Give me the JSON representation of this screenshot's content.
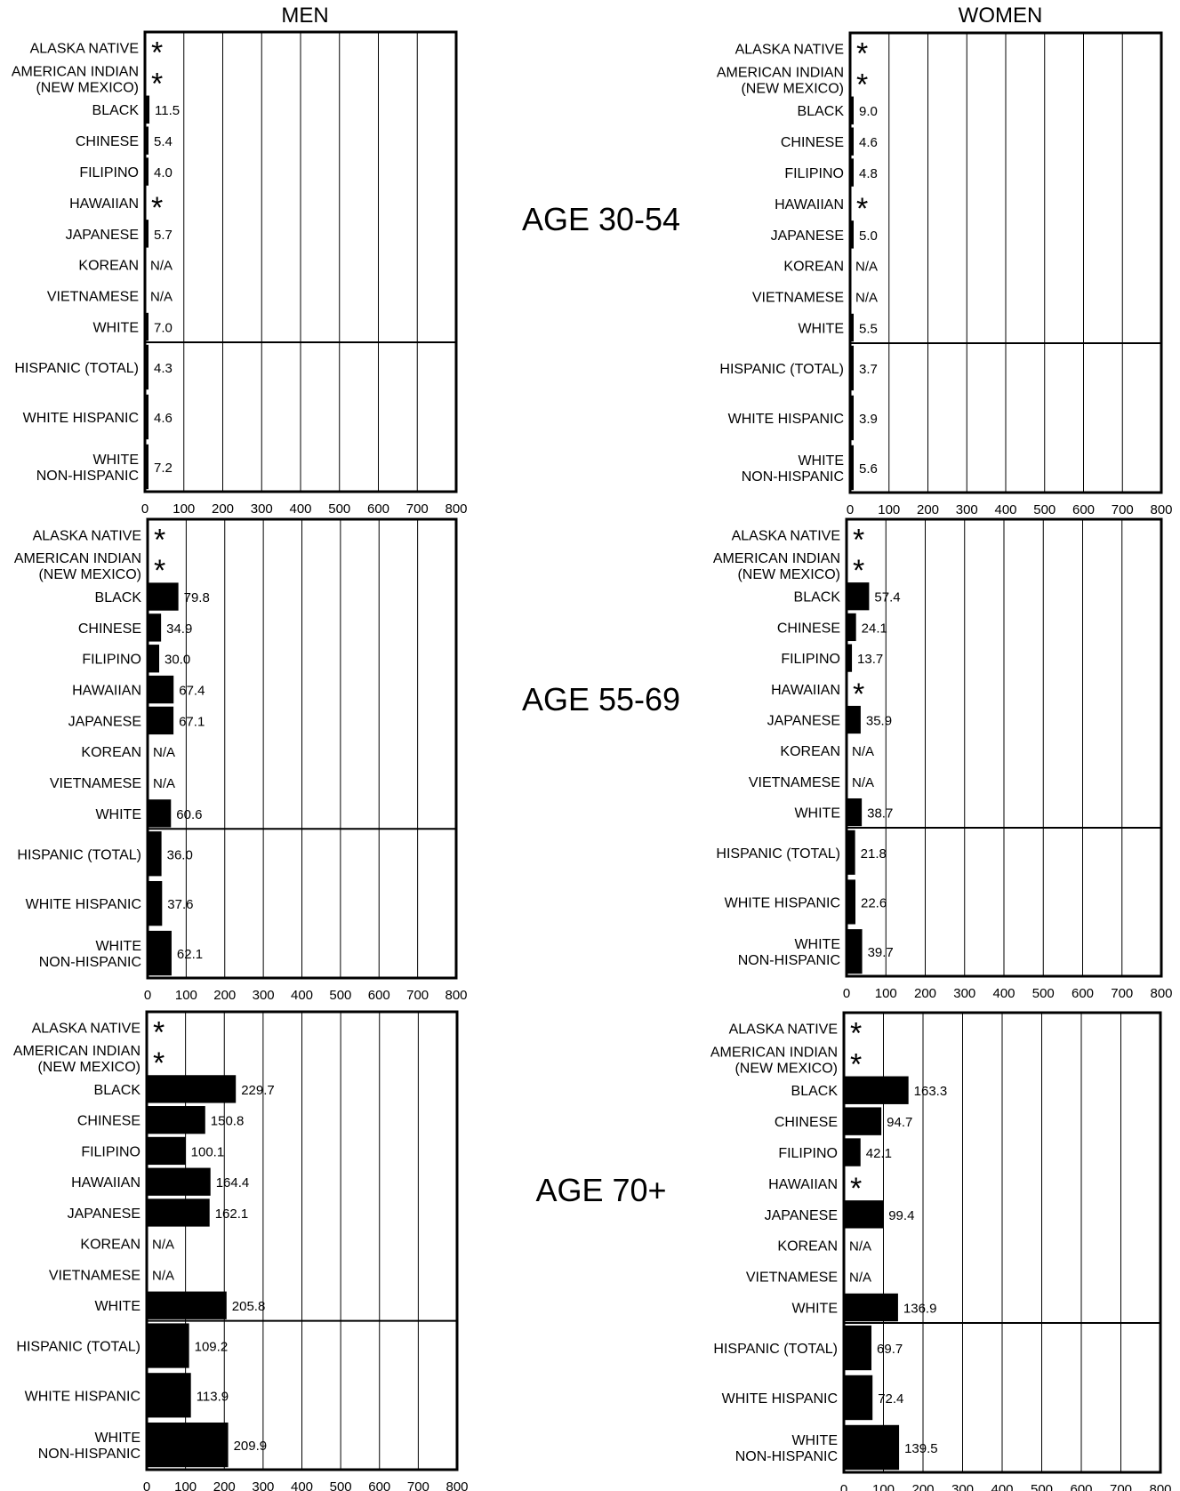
{
  "headers": {
    "men": "MEN",
    "women": "WOMEN"
  },
  "age_groups": [
    "AGE 30-54",
    "AGE 55-69",
    "AGE 70+"
  ],
  "chart_data": [
    {
      "type": "bar",
      "orientation": "horizontal",
      "sex": "MEN",
      "age_group": "AGE 30-54",
      "xlim": [
        0,
        800
      ],
      "xticks": [
        0,
        100,
        200,
        300,
        400,
        500,
        600,
        700,
        800
      ],
      "grid": true,
      "categories": [
        "ALASKA NATIVE",
        "AMERICAN INDIAN\n(NEW MEXICO)",
        "BLACK",
        "CHINESE",
        "FILIPINO",
        "HAWAIIAN",
        "JAPANESE",
        "KOREAN",
        "VIETNAMESE",
        "WHITE",
        "HISPANIC (TOTAL)",
        "WHITE HISPANIC",
        "WHITE\nNON-HISPANIC"
      ],
      "values": [
        null,
        null,
        11.5,
        5.4,
        4.0,
        null,
        5.7,
        null,
        null,
        7.0,
        4.3,
        4.6,
        7.2
      ],
      "value_labels": [
        "*",
        "*",
        "11.5",
        "5.4",
        "4.0",
        "*",
        "5.7",
        "N/A",
        "N/A",
        "7.0",
        "4.3",
        "4.6",
        "7.2"
      ]
    },
    {
      "type": "bar",
      "orientation": "horizontal",
      "sex": "WOMEN",
      "age_group": "AGE 30-54",
      "xlim": [
        0,
        800
      ],
      "xticks": [
        0,
        100,
        200,
        300,
        400,
        500,
        600,
        700,
        800
      ],
      "grid": true,
      "categories": [
        "ALASKA NATIVE",
        "AMERICAN INDIAN\n(NEW MEXICO)",
        "BLACK",
        "CHINESE",
        "FILIPINO",
        "HAWAIIAN",
        "JAPANESE",
        "KOREAN",
        "VIETNAMESE",
        "WHITE",
        "HISPANIC (TOTAL)",
        "WHITE HISPANIC",
        "WHITE\nNON-HISPANIC"
      ],
      "values": [
        null,
        null,
        9.0,
        4.6,
        4.8,
        null,
        5.0,
        null,
        null,
        5.5,
        3.7,
        3.9,
        5.6
      ],
      "value_labels": [
        "*",
        "*",
        "9.0",
        "4.6",
        "4.8",
        "*",
        "5.0",
        "N/A",
        "N/A",
        "5.5",
        "3.7",
        "3.9",
        "5.6"
      ]
    },
    {
      "type": "bar",
      "orientation": "horizontal",
      "sex": "MEN",
      "age_group": "AGE 55-69",
      "xlim": [
        0,
        800
      ],
      "xticks": [
        0,
        100,
        200,
        300,
        400,
        500,
        600,
        700,
        800
      ],
      "grid": true,
      "categories": [
        "ALASKA NATIVE",
        "AMERICAN INDIAN\n(NEW MEXICO)",
        "BLACK",
        "CHINESE",
        "FILIPINO",
        "HAWAIIAN",
        "JAPANESE",
        "KOREAN",
        "VIETNAMESE",
        "WHITE",
        "HISPANIC (TOTAL)",
        "WHITE HISPANIC",
        "WHITE\nNON-HISPANIC"
      ],
      "values": [
        null,
        null,
        79.8,
        34.9,
        30.0,
        67.4,
        67.1,
        null,
        null,
        60.6,
        36.0,
        37.6,
        62.1
      ],
      "value_labels": [
        "*",
        "*",
        "79.8",
        "34.9",
        "30.0",
        "67.4",
        "67.1",
        "N/A",
        "N/A",
        "60.6",
        "36.0",
        "37.6",
        "62.1"
      ]
    },
    {
      "type": "bar",
      "orientation": "horizontal",
      "sex": "WOMEN",
      "age_group": "AGE 55-69",
      "xlim": [
        0,
        800
      ],
      "xticks": [
        0,
        100,
        200,
        300,
        400,
        500,
        600,
        700,
        800
      ],
      "grid": true,
      "categories": [
        "ALASKA NATIVE",
        "AMERICAN INDIAN\n(NEW MEXICO)",
        "BLACK",
        "CHINESE",
        "FILIPINO",
        "HAWAIIAN",
        "JAPANESE",
        "KOREAN",
        "VIETNAMESE",
        "WHITE",
        "HISPANIC (TOTAL)",
        "WHITE HISPANIC",
        "WHITE\nNON-HISPANIC"
      ],
      "values": [
        null,
        null,
        57.4,
        24.1,
        13.7,
        null,
        35.9,
        null,
        null,
        38.7,
        21.8,
        22.6,
        39.7
      ],
      "value_labels": [
        "*",
        "*",
        "57.4",
        "24.1",
        "13.7",
        "*",
        "35.9",
        "N/A",
        "N/A",
        "38.7",
        "21.8",
        "22.6",
        "39.7"
      ]
    },
    {
      "type": "bar",
      "orientation": "horizontal",
      "sex": "MEN",
      "age_group": "AGE 70+",
      "xlim": [
        0,
        800
      ],
      "xticks": [
        0,
        100,
        200,
        300,
        400,
        500,
        600,
        700,
        800
      ],
      "grid": true,
      "categories": [
        "ALASKA NATIVE",
        "AMERICAN INDIAN\n(NEW MEXICO)",
        "BLACK",
        "CHINESE",
        "FILIPINO",
        "HAWAIIAN",
        "JAPANESE",
        "KOREAN",
        "VIETNAMESE",
        "WHITE",
        "HISPANIC (TOTAL)",
        "WHITE HISPANIC",
        "WHITE\nNON-HISPANIC"
      ],
      "values": [
        null,
        null,
        229.7,
        150.8,
        100.1,
        164.4,
        162.1,
        null,
        null,
        205.8,
        109.2,
        113.9,
        209.9
      ],
      "value_labels": [
        "*",
        "*",
        "229.7",
        "150.8",
        "100.1",
        "164.4",
        "162.1",
        "N/A",
        "N/A",
        "205.8",
        "109.2",
        "113.9",
        "209.9"
      ]
    },
    {
      "type": "bar",
      "orientation": "horizontal",
      "sex": "WOMEN",
      "age_group": "AGE 70+",
      "xlim": [
        0,
        800
      ],
      "xticks": [
        0,
        100,
        200,
        300,
        400,
        500,
        600,
        700,
        800
      ],
      "grid": true,
      "categories": [
        "ALASKA NATIVE",
        "AMERICAN INDIAN\n(NEW MEXICO)",
        "BLACK",
        "CHINESE",
        "FILIPINO",
        "HAWAIIAN",
        "JAPANESE",
        "KOREAN",
        "VIETNAMESE",
        "WHITE",
        "HISPANIC (TOTAL)",
        "WHITE HISPANIC",
        "WHITE\nNON-HISPANIC"
      ],
      "values": [
        null,
        null,
        163.3,
        94.7,
        42.1,
        null,
        99.4,
        null,
        null,
        136.9,
        69.7,
        72.4,
        139.5
      ],
      "value_labels": [
        "*",
        "*",
        "163.3",
        "94.7",
        "42.1",
        "*",
        "99.4",
        "N/A",
        "N/A",
        "136.9",
        "69.7",
        "72.4",
        "139.5"
      ]
    }
  ]
}
